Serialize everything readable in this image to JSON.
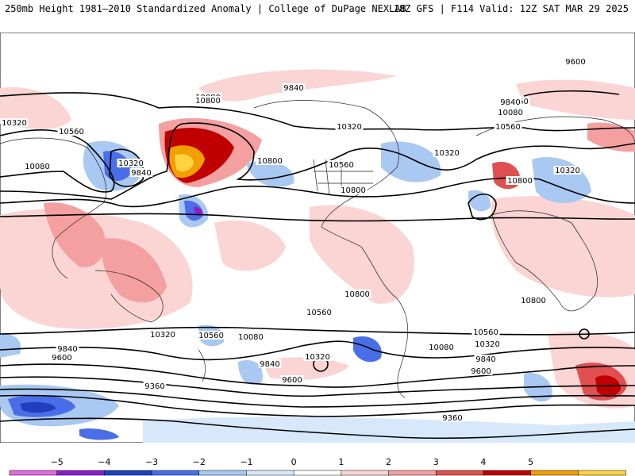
{
  "header": {
    "title": "250mb Height 1981–2010 Standardized Anomaly | College of DuPage NEXLAB",
    "run": "18Z GFS | F114 Valid: 12Z SAT MAR 29 2025"
  },
  "contour_labels": [
    "9600",
    "9840",
    "10080",
    "10320",
    "10560",
    "10800",
    "10320",
    "10080",
    "9840",
    "10320",
    "10560",
    "10800",
    "10080",
    "10560",
    "10320",
    "10560",
    "10800",
    "10560",
    "10080",
    "9840",
    "10320",
    "10800",
    "10800",
    "10560",
    "10800",
    "10080",
    "10320",
    "10560",
    "9840",
    "9600",
    "10320",
    "9840",
    "9600",
    "9360",
    "9360",
    "10560",
    "10320",
    "10080",
    "9840",
    "9600"
  ],
  "colorbar": {
    "ticks": [
      "−5",
      "−4",
      "−3",
      "−2",
      "−1",
      "0",
      "1",
      "2",
      "3",
      "4",
      "5"
    ],
    "colors": [
      "#e06ce0",
      "#8a1fc8",
      "#1f3fbf",
      "#4a6ee8",
      "#a9c8f2",
      "#d8e8fb",
      "#ffffff",
      "#fbd4d4",
      "#f4a0a0",
      "#e05050",
      "#c00000",
      "#f0a000",
      "#ffd23f"
    ]
  }
}
